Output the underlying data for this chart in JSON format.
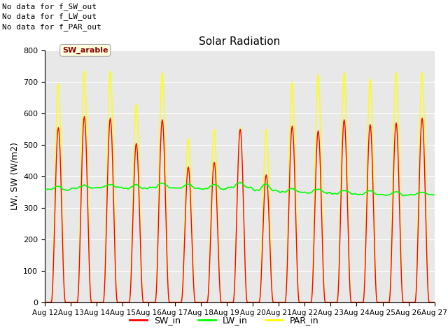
{
  "title": "Solar Radiation",
  "ylabel": "LW, SW (W/m2)",
  "ylim": [
    0,
    800
  ],
  "bg_color": "#e8e8e8",
  "sw_in_color": "#ff0000",
  "lw_in_color": "#00ff00",
  "par_in_color": "#ffff00",
  "annotations": [
    "No data for f_SW_out",
    "No data for f_LW_out",
    "No data for f_PAR_out"
  ],
  "tooltip_label": "SW_arable",
  "x_tick_labels": [
    "Aug 12",
    "Aug 13",
    "Aug 14",
    "Aug 15",
    "Aug 16",
    "Aug 17",
    "Aug 18",
    "Aug 19",
    "Aug 20",
    "Aug 21",
    "Aug 22",
    "Aug 23",
    "Aug 24",
    "Aug 25",
    "Aug 26",
    "Aug 27"
  ],
  "yticks": [
    0,
    100,
    200,
    300,
    400,
    500,
    600,
    700,
    800
  ],
  "sw_in_peaks": [
    555,
    590,
    585,
    505,
    580,
    430,
    445,
    550,
    405,
    560,
    545,
    580,
    565,
    570,
    585
  ],
  "par_in_peaks": [
    695,
    735,
    735,
    630,
    730,
    520,
    550,
    555,
    550,
    700,
    725,
    730,
    710,
    730,
    730
  ],
  "lw_in_day_vals": [
    368,
    372,
    375,
    372,
    378,
    376,
    374,
    380,
    375,
    362,
    360,
    355,
    355,
    352,
    350
  ],
  "lw_in_night_vals": [
    358,
    362,
    365,
    362,
    365,
    363,
    360,
    365,
    355,
    350,
    348,
    345,
    343,
    340,
    342
  ]
}
